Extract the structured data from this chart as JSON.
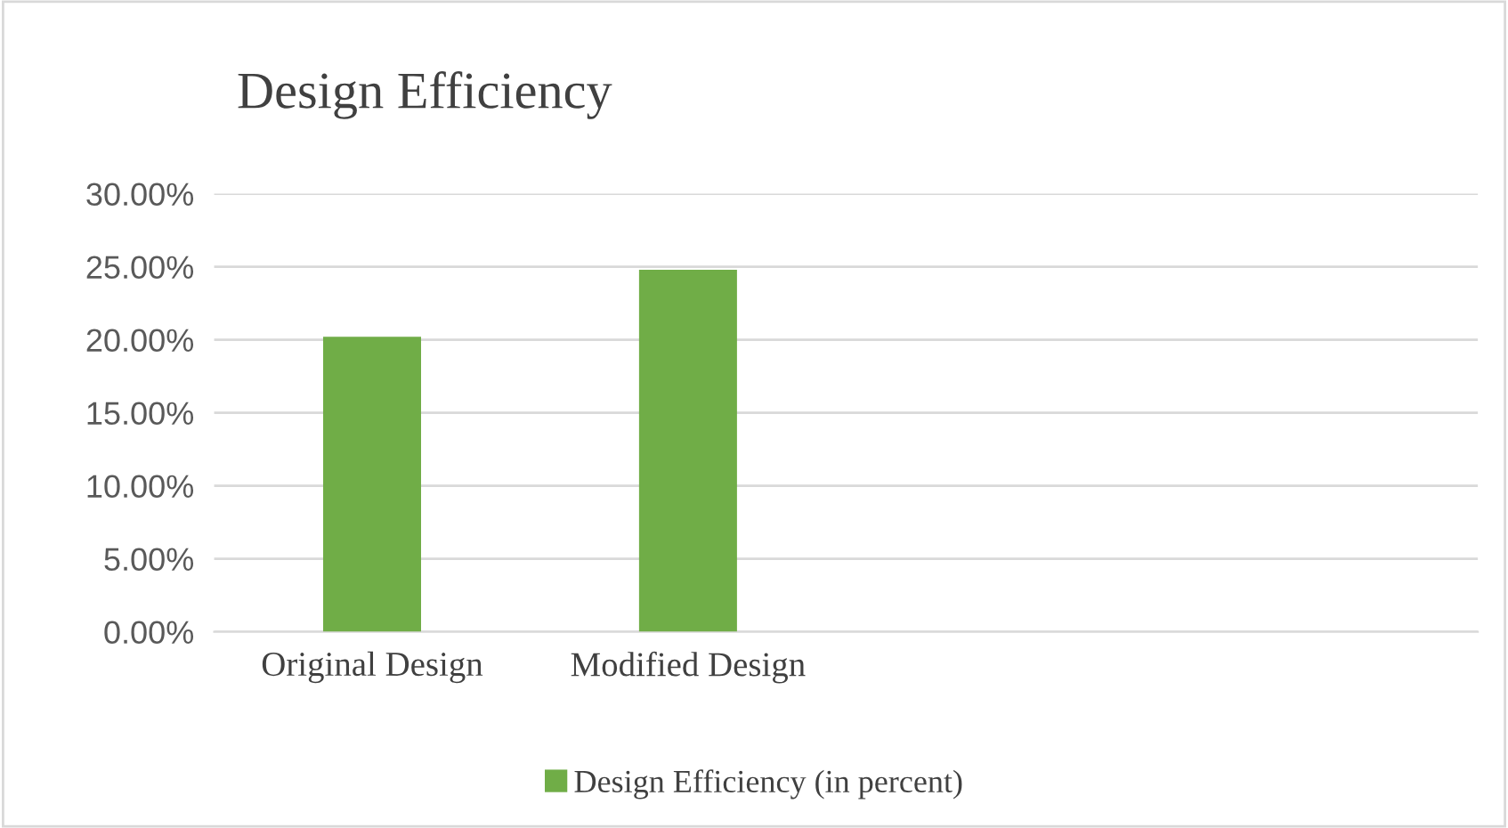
{
  "chart_data": {
    "type": "bar",
    "title": "Design Efficiency",
    "categories": [
      "Original Design",
      "Modified Design",
      null,
      null
    ],
    "series": [
      {
        "name": "Design Efficiency (in percent)",
        "color": "#70ad47",
        "values": [
          20.2,
          24.8,
          null,
          null
        ]
      }
    ],
    "ylim": [
      0,
      30
    ],
    "yticks": [
      {
        "value": 0,
        "label": "0.00%"
      },
      {
        "value": 5,
        "label": "5.00%"
      },
      {
        "value": 10,
        "label": "10.00%"
      },
      {
        "value": 15,
        "label": "15.00%"
      },
      {
        "value": 20,
        "label": "20.00%"
      },
      {
        "value": 25,
        "label": "25.00%"
      },
      {
        "value": 30,
        "label": "30.00%"
      }
    ],
    "grid": "y",
    "legend": "bottom"
  }
}
